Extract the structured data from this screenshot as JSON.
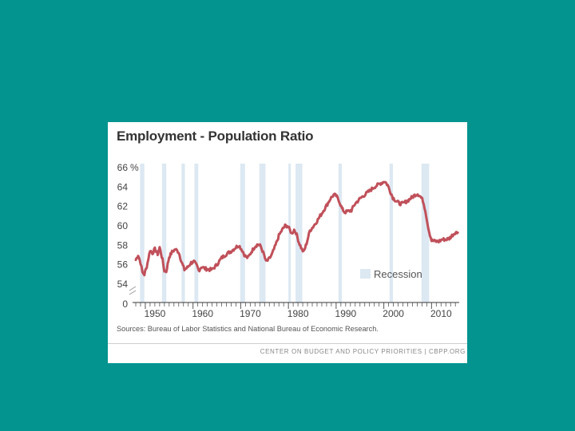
{
  "colors": {
    "background": "#039490",
    "line": "#c0505a",
    "recession": "#dce8f2",
    "text": "#555555"
  },
  "chart_data": {
    "type": "line",
    "title": "Employment - Population Ratio",
    "ylabel": "",
    "xlabel": "",
    "y_unit": "%",
    "ylim": [
      54,
      66
    ],
    "y_ticks": [
      "66",
      "64",
      "62",
      "60",
      "58",
      "56",
      "54",
      "0"
    ],
    "x_ticks": [
      "1950",
      "1960",
      "1970",
      "1980",
      "1990",
      "2000",
      "2010"
    ],
    "xlim": [
      1948,
      2015.8
    ],
    "axis_break": true,
    "grid": false,
    "legend": {
      "label": "Recession",
      "position": "bottom-right"
    },
    "recessions": [
      [
        1948.9,
        1949.8
      ],
      [
        1953.5,
        1954.4
      ],
      [
        1957.6,
        1958.3
      ],
      [
        1960.3,
        1961.1
      ],
      [
        1969.9,
        1970.9
      ],
      [
        1973.9,
        1975.2
      ],
      [
        1980.0,
        1980.5
      ],
      [
        1981.5,
        1982.9
      ],
      [
        1990.5,
        1991.2
      ],
      [
        2001.2,
        2001.9
      ],
      [
        2007.9,
        2009.5
      ]
    ],
    "series": [
      {
        "x": [
          1948.0,
          1948.5,
          1949.0,
          1949.4,
          1949.8,
          1950.3,
          1951.0,
          1951.5,
          1952.0,
          1952.6,
          1953.0,
          1953.6,
          1954.0,
          1954.4,
          1955.0,
          1955.6,
          1956.3,
          1957.0,
          1957.6,
          1958.2,
          1958.8,
          1959.6,
          1960.2,
          1960.8,
          1961.2,
          1961.8,
          1962.5,
          1963.3,
          1964.0,
          1965.0,
          1966.0,
          1967.0,
          1968.0,
          1969.0,
          1969.6,
          1970.3,
          1970.9,
          1971.5,
          1972.2,
          1973.0,
          1973.6,
          1974.2,
          1974.9,
          1975.3,
          1975.8,
          1976.5,
          1977.3,
          1978.0,
          1978.7,
          1979.3,
          1979.8,
          1980.3,
          1980.7,
          1981.2,
          1981.6,
          1982.2,
          1982.8,
          1983.2,
          1983.8,
          1984.5,
          1985.3,
          1986.0,
          1987.0,
          1988.0,
          1988.8,
          1989.5,
          1990.0,
          1990.6,
          1991.2,
          1991.8,
          1992.5,
          1993.2,
          1994.0,
          1995.0,
          1996.0,
          1997.0,
          1998.0,
          1999.0,
          2000.2,
          2000.8,
          2001.3,
          2001.9,
          2002.5,
          2003.3,
          2004.0,
          2005.0,
          2005.8,
          2006.6,
          2007.1,
          2007.7,
          2008.2,
          2008.7,
          2009.1,
          2009.5,
          2010.0,
          2010.8,
          2011.5,
          2012.2,
          2013.0,
          2013.7,
          2014.3,
          2014.9,
          2015.5
        ],
        "values": [
          56.5,
          57.0,
          56.2,
          55.2,
          55.0,
          55.8,
          57.5,
          57.2,
          57.6,
          57.1,
          57.8,
          56.5,
          55.4,
          55.3,
          56.8,
          57.3,
          57.6,
          57.3,
          56.3,
          55.5,
          55.7,
          56.2,
          56.3,
          55.9,
          55.4,
          55.8,
          55.6,
          55.5,
          55.5,
          56.0,
          56.7,
          57.1,
          57.4,
          57.8,
          58.0,
          57.5,
          56.9,
          56.7,
          57.3,
          57.9,
          58.1,
          57.9,
          57.0,
          56.3,
          56.5,
          57.0,
          58.0,
          59.0,
          59.6,
          60.0,
          60.0,
          59.6,
          59.2,
          59.6,
          59.3,
          58.3,
          57.6,
          57.3,
          58.2,
          59.5,
          60.0,
          60.5,
          61.3,
          62.1,
          62.8,
          63.2,
          63.1,
          62.6,
          61.8,
          61.4,
          61.5,
          61.6,
          62.3,
          62.8,
          63.2,
          63.6,
          64.0,
          64.3,
          64.6,
          64.2,
          63.6,
          62.9,
          62.6,
          62.3,
          62.3,
          62.6,
          62.9,
          63.2,
          63.3,
          63.0,
          62.6,
          61.6,
          60.4,
          59.4,
          58.5,
          58.4,
          58.4,
          58.6,
          58.6,
          58.7,
          59.0,
          59.3,
          59.3
        ]
      }
    ]
  },
  "sources_text": "Sources: Bureau of Labor Statistics and National Bureau of Economic Research.",
  "footer_text": "CENTER ON BUDGET AND POLICY PRIORITIES | CBPP.ORG"
}
